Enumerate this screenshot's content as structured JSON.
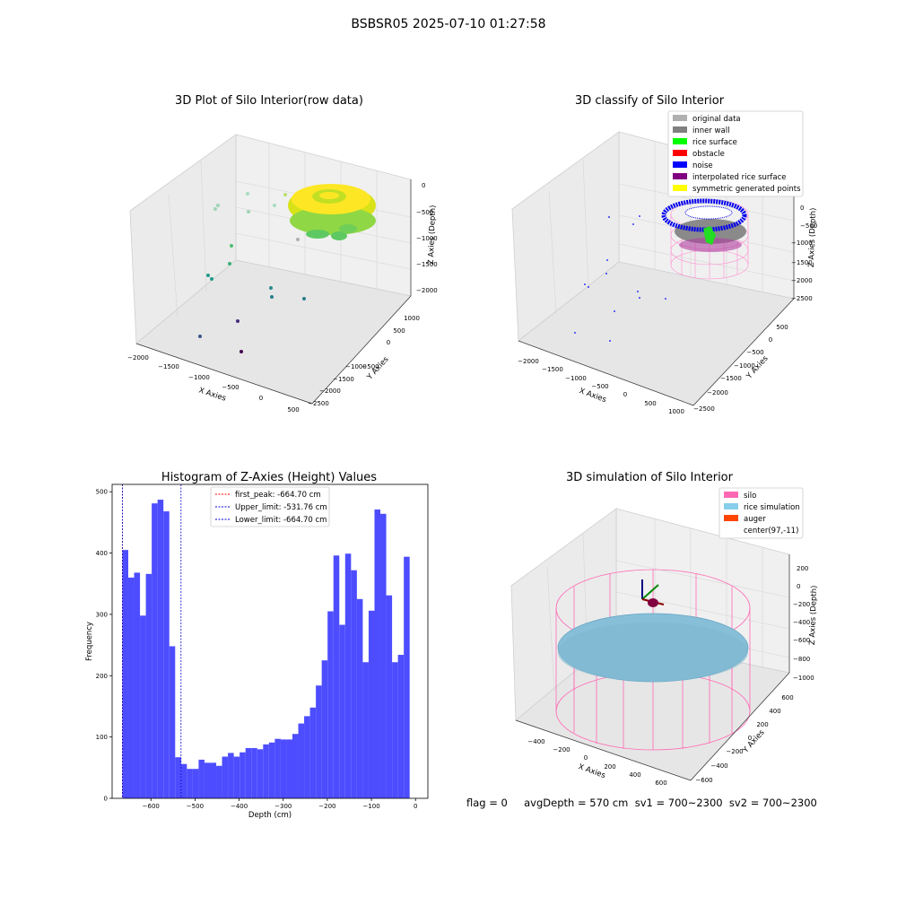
{
  "figure_title": "BSBSR05 2025-07-10 01:27:58",
  "status_text": "flag = 0     avgDepth = 570 cm  sv1 = 700~2300  sv2 = 700~2300",
  "colors": {
    "hist_bar": "#4d4dff",
    "first_peak": "#ff0000",
    "limit_line": "#0000cc",
    "silo": "#ff69b4",
    "rice_sim": "#87ceeb",
    "auger": "#ff4500",
    "pane": "#f2f2f2"
  },
  "chart_data": [
    {
      "type": "scatter",
      "panel": "top-left",
      "title": "3D Plot of Silo Interior(row data)",
      "xlabel": "X Axies",
      "ylabel": "Y Axies",
      "zlabel": "Z Axies (Depth)",
      "x_ticks": [
        "−2000",
        "−1500",
        "−1000",
        "−500",
        "0",
        "500"
      ],
      "y_ticks": [
        "1000",
        "500",
        "0",
        "−500",
        "−1000",
        "−1500",
        "−2000",
        "−2500"
      ],
      "z_ticks": [
        "0",
        "−500",
        "−1000",
        "−1500",
        "−2000"
      ],
      "colormap": "viridis",
      "description_points": "ring of dense points near z≈0 to −800 plus scattered outliers down to ≈−2300"
    },
    {
      "type": "scatter",
      "panel": "top-right",
      "title": "3D classify of Silo Interior",
      "xlabel": "X Axies",
      "ylabel": "Y Axies",
      "zlabel": "Z Axies (Depth)",
      "x_ticks": [
        "−2000",
        "−1500",
        "−1000",
        "−500",
        "0",
        "500",
        "1000"
      ],
      "y_ticks": [
        "500",
        "0",
        "−500",
        "−1000",
        "−1500",
        "−2000",
        "−2500"
      ],
      "z_ticks": [
        "0",
        "−500",
        "−1000",
        "−1500",
        "−2000",
        "−2500"
      ],
      "legend": [
        {
          "label": "original data",
          "color": "#b0b0b0"
        },
        {
          "label": "inner wall",
          "color": "#808080"
        },
        {
          "label": "rice surface",
          "color": "#00ff00"
        },
        {
          "label": "obstacle",
          "color": "#ff0000"
        },
        {
          "label": "noise",
          "color": "#0000ff"
        },
        {
          "label": "interpolated rice surface",
          "color": "#800080"
        },
        {
          "label": "symmetric generated points",
          "color": "#ffff00"
        }
      ],
      "legend_position": "top-right"
    },
    {
      "type": "bar",
      "panel": "bottom-left",
      "title": "Histogram of Z-Axies (Height) Values",
      "xlabel": "Depth (cm)",
      "ylabel": "Frequency",
      "xlim": [
        -688,
        28
      ],
      "ylim": [
        0,
        512
      ],
      "x_ticks": [
        -600,
        -500,
        -400,
        -300,
        -200,
        -100,
        0
      ],
      "x_tick_labels": [
        "−600",
        "−500",
        "−400",
        "−300",
        "−200",
        "−100",
        "0"
      ],
      "y_ticks": [
        0,
        100,
        200,
        300,
        400,
        500
      ],
      "bin_start": -664.7,
      "bin_width": 13.294,
      "values": [
        405,
        360,
        368,
        298,
        366,
        481,
        487,
        468,
        248,
        67,
        56,
        48,
        48,
        63,
        58,
        58,
        53,
        68,
        74,
        68,
        75,
        82,
        82,
        80,
        88,
        91,
        97,
        96,
        96,
        105,
        122,
        134,
        148,
        184,
        225,
        305,
        396,
        283,
        399,
        372,
        325,
        222,
        306,
        471,
        464,
        331,
        222,
        234,
        394
      ],
      "vlines": [
        {
          "label": "first_peak: -664.70 cm",
          "x": -664.7,
          "color": "#ff0000"
        },
        {
          "label": "Upper_limit: -531.76 cm",
          "x": -531.76,
          "color": "#0000cc"
        },
        {
          "label": "Lower_limit: -664.70 cm",
          "x": -664.7,
          "color": "#0000cc"
        }
      ],
      "legend_position": "top-center"
    },
    {
      "type": "scatter",
      "panel": "bottom-right",
      "title": "3D simulation of Silo Interior",
      "xlabel": "X Axies",
      "ylabel": "Y Axies",
      "zlabel": "Z Axies (Depth)",
      "x_ticks": [
        "−400",
        "−200",
        "0",
        "200",
        "400",
        "600"
      ],
      "y_ticks": [
        "600",
        "400",
        "200",
        "0",
        "−200",
        "−400",
        "−600"
      ],
      "z_ticks": [
        "200",
        "0",
        "−200",
        "−400",
        "−600",
        "−800",
        "−1000"
      ],
      "legend": [
        {
          "label": "silo",
          "color": "#ff69b4"
        },
        {
          "label": "rice simulation",
          "color": "#87ceeb"
        },
        {
          "label": "auger",
          "color": "#ff4500"
        },
        {
          "label": "center(97,-11)",
          "color": ""
        }
      ],
      "legend_position": "top-right"
    }
  ]
}
